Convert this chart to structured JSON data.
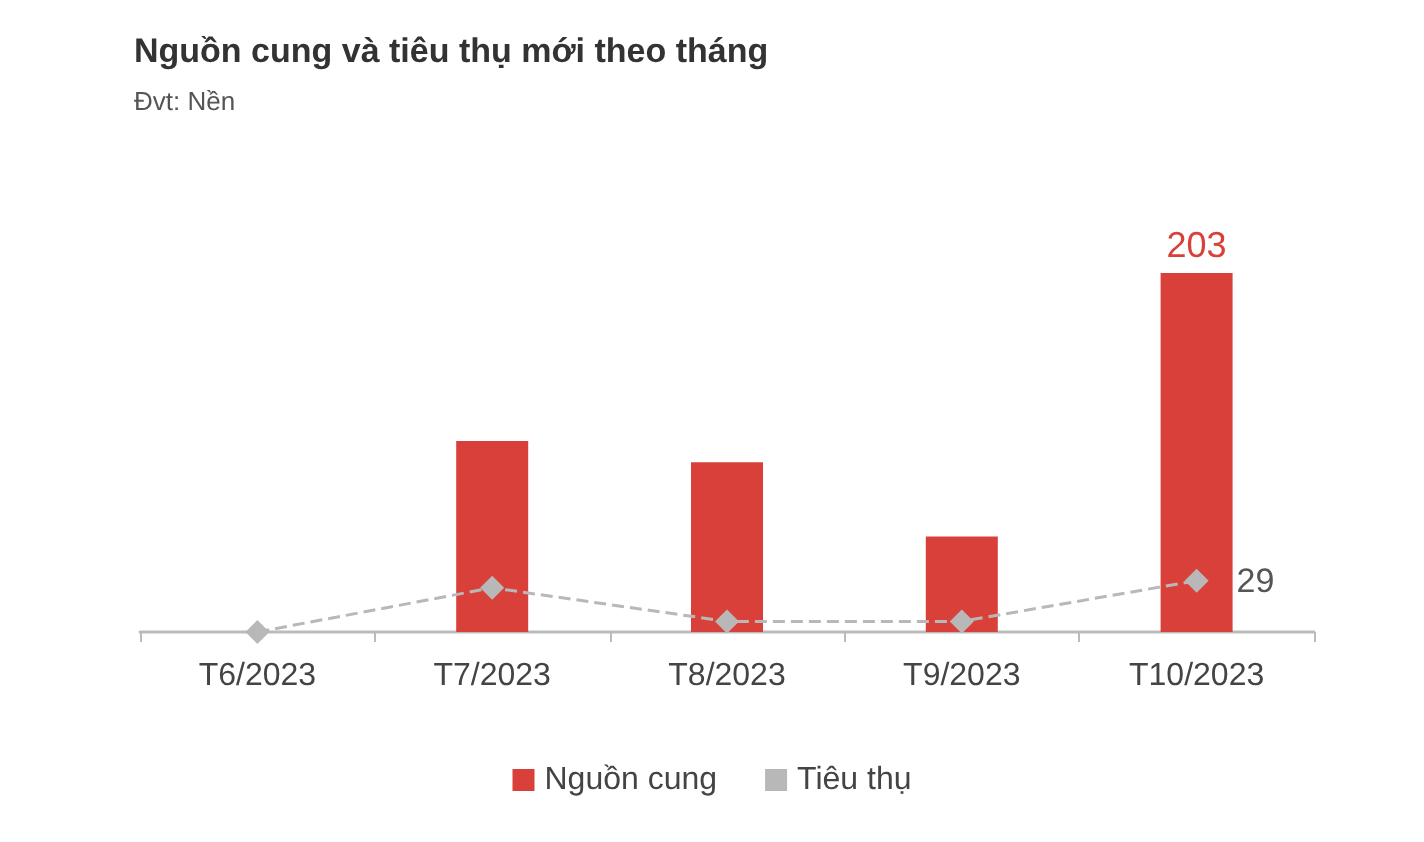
{
  "chart_data": {
    "type": "bar",
    "title": "Nguồn cung và tiêu thụ mới theo tháng",
    "subtitle": "Đvt: Nền",
    "categories": [
      "T6/2023",
      "T7/2023",
      "T8/2023",
      "T9/2023",
      "T10/2023"
    ],
    "series": [
      {
        "name": "Nguồn cung",
        "color": "#d9403a",
        "values": [
          0,
          108,
          96,
          54,
          203
        ],
        "value_labels": [
          null,
          null,
          null,
          null,
          "203"
        ]
      },
      {
        "name": "Tiêu thụ",
        "type": "line",
        "color": "#b8b8b8",
        "values": [
          0,
          25,
          6,
          6,
          29
        ],
        "value_labels": [
          null,
          null,
          null,
          null,
          "29"
        ],
        "marker": "diamond",
        "line_style": "dashed"
      }
    ],
    "legend": "bottom",
    "grid": false,
    "tick_labels": "x"
  }
}
